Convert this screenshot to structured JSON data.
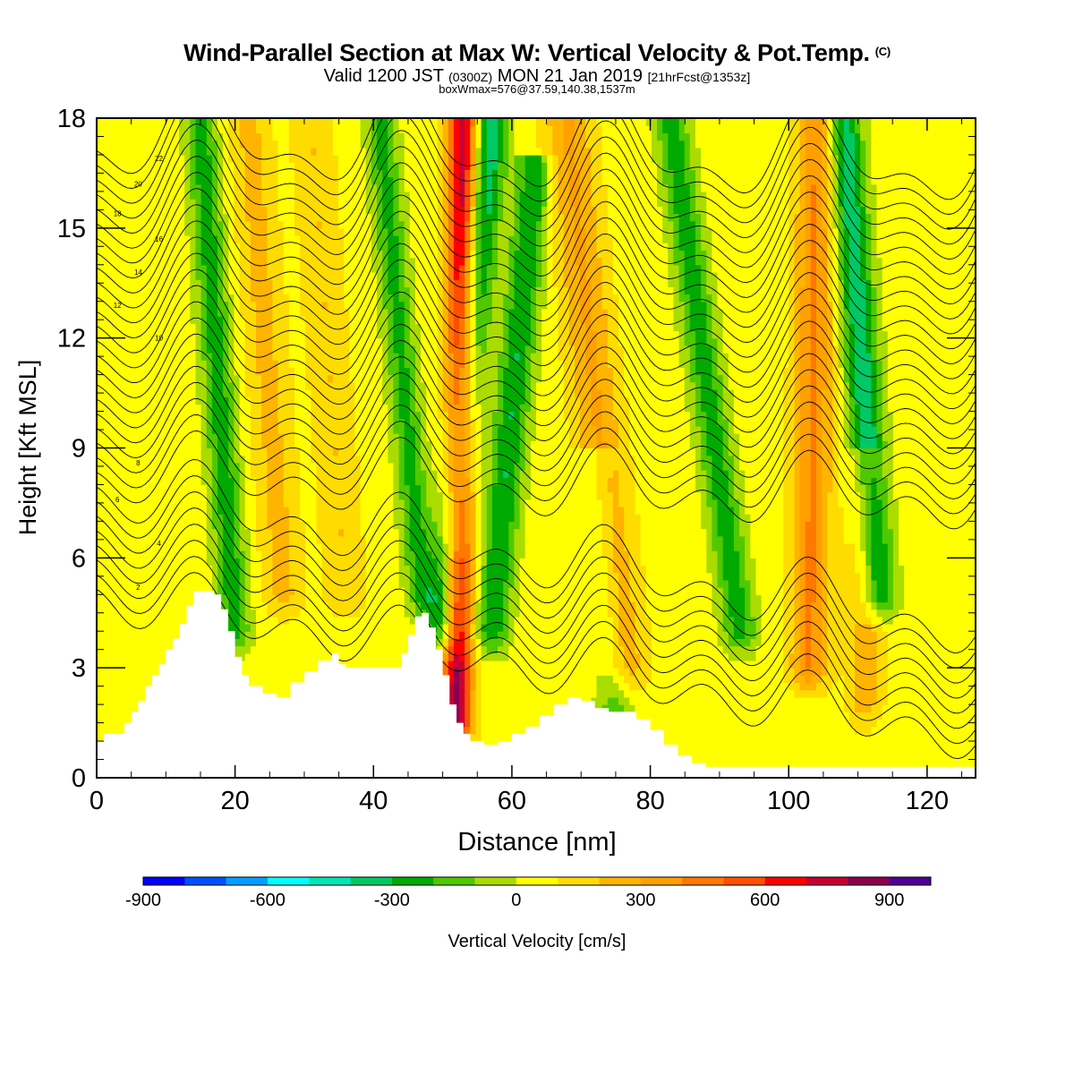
{
  "title": {
    "main": "Wind-Parallel Section at Max W: Vertical Velocity & Pot.Temp.",
    "copyright": "(C)",
    "valid_prefix": "Valid 1200 JST",
    "valid_utc": "(0300Z)",
    "valid_date": "MON 21 Jan 2019",
    "forecast": "[21hrFcst@1353z]",
    "boxinfo": "boxWmax=576@37.59,140.38,1537m"
  },
  "colorbar": {
    "label": "Vertical Velocity [cm/s]",
    "tick_labels": [
      "-900",
      "-600",
      "-300",
      "0",
      "300",
      "600",
      "900"
    ],
    "colors": [
      "#0000ff",
      "#0050ff",
      "#00a0ff",
      "#00ffff",
      "#00e6b4",
      "#00c864",
      "#00aa00",
      "#50c800",
      "#aadc00",
      "#ffff00",
      "#ffdc00",
      "#ffb400",
      "#ffa000",
      "#ff7800",
      "#ff5000",
      "#ff0000",
      "#c80032",
      "#8c0050",
      "#500096"
    ]
  },
  "chart_data": {
    "type": "heatmap",
    "xlabel": "Distance [nm]",
    "ylabel": "Height [Kft MSL]",
    "xlim": [
      0,
      127
    ],
    "ylim": [
      0,
      18
    ],
    "xticks": [
      0,
      20,
      40,
      60,
      80,
      100,
      120
    ],
    "yticks": [
      0,
      3,
      6,
      9,
      12,
      15,
      18
    ],
    "colorbar_range": [
      -900,
      1000
    ],
    "colorbar_step": 100,
    "background_value_cm_s": 50,
    "vertical_velocity_features": [
      {
        "type": "updraft",
        "x_base": 52,
        "x_top": 53,
        "value": 760,
        "width_nm": 2.2,
        "z_range": [
          1.5,
          18
        ]
      },
      {
        "type": "downdraft",
        "x_base": 50,
        "x_top": 57,
        "value": -450,
        "width_nm": 2.5,
        "z_range": [
          4,
          18
        ]
      },
      {
        "type": "downdraft",
        "x_base": 57,
        "x_top": 63,
        "value": -350,
        "width_nm": 2.5,
        "z_range": [
          4,
          16
        ]
      },
      {
        "type": "downdraft",
        "x_base": 47,
        "x_top": 41,
        "value": -280,
        "width_nm": 2.2,
        "z_range": [
          5,
          18
        ]
      },
      {
        "type": "downdraft",
        "x_base": 20,
        "x_top": 15,
        "value": -300,
        "width_nm": 2.3,
        "z_range": [
          4,
          18
        ]
      },
      {
        "type": "updraft",
        "x_base": 27,
        "x_top": 22,
        "value": 180,
        "width_nm": 3.0,
        "z_range": [
          5,
          18
        ]
      },
      {
        "type": "updraft",
        "x_base": 36,
        "x_top": 31,
        "value": 150,
        "width_nm": 3.0,
        "z_range": [
          5,
          18
        ]
      },
      {
        "type": "updraft",
        "x_base": 76,
        "x_top": 68,
        "value": 260,
        "width_nm": 3.5,
        "z_range": [
          3,
          18
        ]
      },
      {
        "type": "downdraft",
        "x_base": 93,
        "x_top": 83,
        "value": -300,
        "width_nm": 2.5,
        "z_range": [
          4,
          18
        ]
      },
      {
        "type": "updraft",
        "x_base": 103,
        "x_top": 104,
        "value": 360,
        "width_nm": 2.8,
        "z_range": [
          3,
          18
        ]
      },
      {
        "type": "downdraft",
        "x_base": 113,
        "x_top": 108,
        "value": -420,
        "width_nm": 2.5,
        "z_range": [
          5,
          18
        ]
      },
      {
        "type": "downdraft",
        "x_base": 75,
        "x_top": 72,
        "value": -200,
        "width_nm": 2.5,
        "z_range": [
          1,
          8
        ]
      },
      {
        "type": "updraft",
        "x_base": 111,
        "x_top": 111,
        "value": 200,
        "width_nm": 2.5,
        "z_range": [
          2,
          8
        ]
      }
    ],
    "terrain": {
      "x": [
        0,
        1,
        4,
        5,
        6,
        7,
        8,
        9,
        10,
        11,
        12,
        13,
        14,
        16,
        17,
        18,
        19,
        20,
        21,
        22,
        24,
        26,
        28,
        30,
        32,
        34,
        35,
        36,
        38,
        40,
        42,
        44,
        45,
        46,
        47,
        48,
        49,
        50,
        51,
        52,
        53,
        54,
        55,
        56,
        57,
        58,
        60,
        62,
        64,
        66,
        68,
        70,
        72,
        74,
        76,
        78,
        80,
        82,
        84,
        86,
        88,
        90,
        100,
        110,
        120,
        127
      ],
      "z": [
        1.0,
        1.2,
        1.5,
        1.8,
        2.1,
        2.5,
        2.8,
        3.1,
        3.5,
        3.8,
        4.2,
        4.7,
        5.1,
        5.1,
        5.0,
        4.6,
        4.0,
        3.3,
        2.8,
        2.5,
        2.3,
        2.2,
        2.6,
        2.9,
        3.2,
        3.4,
        3.1,
        3.0,
        3.0,
        3.0,
        3.0,
        3.4,
        3.9,
        4.4,
        4.5,
        4.1,
        3.5,
        2.8,
        2.0,
        1.5,
        1.2,
        1.0,
        1.0,
        0.9,
        0.9,
        1.0,
        1.2,
        1.4,
        1.7,
        2.0,
        2.2,
        2.1,
        1.9,
        1.8,
        1.8,
        1.6,
        1.3,
        0.9,
        0.6,
        0.4,
        0.3,
        0.3,
        0.3,
        0.3,
        0.3,
        0.3
      ]
    },
    "pot_temp_contours": {
      "units": "C",
      "interval": 2,
      "levels_shown": [
        2,
        4,
        6,
        8,
        10,
        12,
        14,
        16,
        18,
        20,
        22
      ],
      "approx_levels_at_x0": [
        {
          "theta": 2,
          "height_kft": 5.2
        },
        {
          "theta": 4,
          "height_kft": 6.4
        },
        {
          "theta": 6,
          "height_kft": 7.6
        },
        {
          "theta": 8,
          "height_kft": 8.6
        },
        {
          "theta": 10,
          "height_kft": 12.0
        },
        {
          "theta": 12,
          "height_kft": 12.9
        },
        {
          "theta": 14,
          "height_kft": 13.8
        },
        {
          "theta": 16,
          "height_kft": 14.7
        },
        {
          "theta": 18,
          "height_kft": 15.4
        },
        {
          "theta": 20,
          "height_kft": 16.2
        },
        {
          "theta": 22,
          "height_kft": 16.9
        }
      ]
    }
  }
}
